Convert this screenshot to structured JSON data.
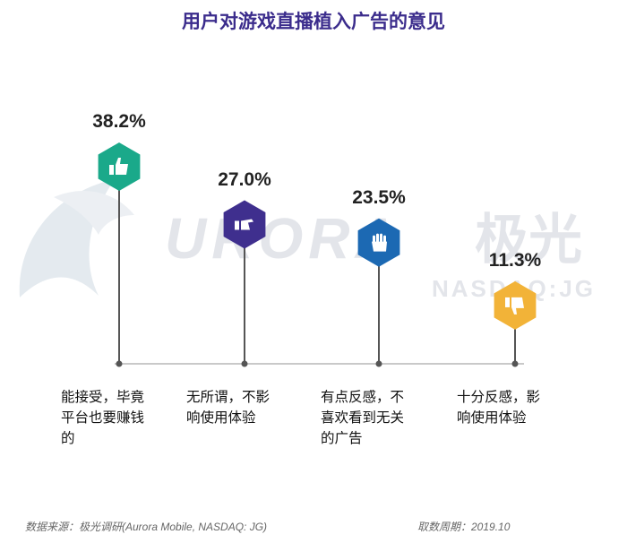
{
  "title": "用户对游戏直播植入广告的意见",
  "watermark": {
    "brand": "URORA",
    "brand_cn": "极光",
    "sub": "NASDAQ:JG"
  },
  "chart_data": {
    "type": "bar",
    "title": "用户对游戏直播植入广告的意见",
    "categories": [
      "能接受，毕竟平台也要赚钱的",
      "无所谓，不影响使用体验",
      "有点反感，不喜欢看到无关的广告",
      "十分反感，影响使用体验"
    ],
    "values": [
      38.2,
      27.0,
      23.5,
      11.3
    ],
    "labels": [
      "38.2%",
      "27.0%",
      "23.5%",
      "11.3%"
    ],
    "unit": "%",
    "colors": [
      "#1aa98a",
      "#3f2f8e",
      "#1c69b3",
      "#f2b338"
    ],
    "icons": [
      "thumbs-up-icon",
      "thumbs-side-icon",
      "hand-wave-icon",
      "thumbs-down-icon"
    ]
  },
  "categories_text": [
    [
      "能接受，毕竟",
      "平台也要赚钱",
      "的"
    ],
    [
      "无所谓，不影",
      "响使用体验"
    ],
    [
      "有点反感，不",
      "喜欢看到无关",
      "的广告"
    ],
    [
      "十分反感，影",
      "响使用体验"
    ]
  ],
  "footer": {
    "source": "数据来源：极光调研(Aurora Mobile, NASDAQ: JG)",
    "period": "取数周期：2019.10"
  }
}
